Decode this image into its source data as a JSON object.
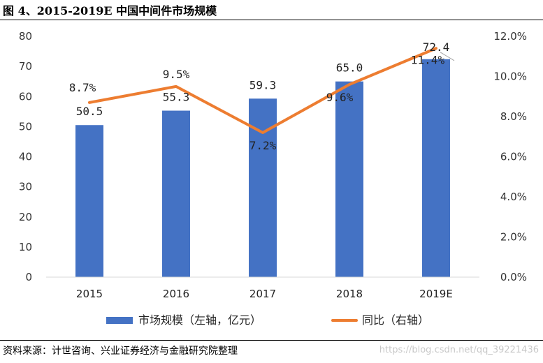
{
  "figure": {
    "title": "图 4、2015-2019E 中国中间件市场规模",
    "source": "资料来源：计世咨询、兴业证券经济与金融研究院整理",
    "watermark": "https://blog.csdn.net/qq_39221436"
  },
  "chart_data": {
    "type": "bar",
    "title": "图 4、2015-2019E 中国中间件市场规模",
    "categories": [
      "2015",
      "2016",
      "2017",
      "2018",
      "2019E"
    ],
    "series": [
      {
        "name": "市场规模（左轴，亿元）",
        "type": "bar",
        "axis": "left",
        "values": [
          50.5,
          55.3,
          59.3,
          65.0,
          72.4
        ],
        "labels": [
          "50.5",
          "55.3",
          "59.3",
          "65.0",
          "72.4"
        ]
      },
      {
        "name": "同比（右轴）",
        "type": "line",
        "axis": "right",
        "values": [
          8.7,
          9.5,
          7.2,
          9.6,
          11.4
        ],
        "labels": [
          "8.7%",
          "9.5%",
          "7.2%",
          "9.6%",
          "11.4%"
        ]
      }
    ],
    "y_left": {
      "min": 0,
      "max": 80,
      "ticks": [
        "0",
        "10",
        "20",
        "30",
        "40",
        "50",
        "60",
        "70",
        "80"
      ]
    },
    "y_right": {
      "min": 0,
      "max": 12,
      "ticks": [
        "0.0%",
        "2.0%",
        "4.0%",
        "6.0%",
        "8.0%",
        "10.0%",
        "12.0%"
      ]
    },
    "legend_position": "bottom",
    "colors": {
      "bar": "#4472C4",
      "line": "#ED7D31",
      "axis": "#D9D9D9"
    }
  }
}
